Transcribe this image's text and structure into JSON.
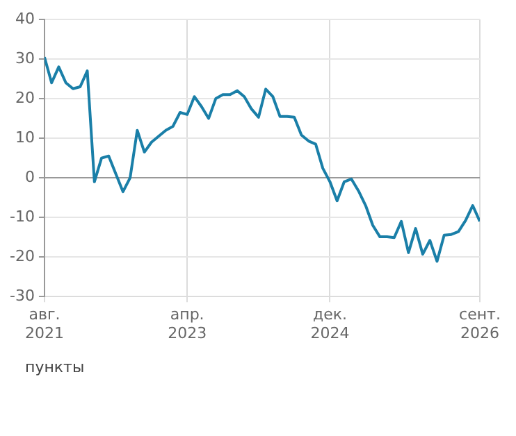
{
  "chart_data": {
    "type": "line",
    "ylabel": "пункты",
    "x": [
      "2021-08",
      "2021-09",
      "2021-10",
      "2021-11",
      "2021-12",
      "2022-01",
      "2022-02",
      "2022-03",
      "2022-04",
      "2022-05",
      "2022-06",
      "2022-07",
      "2022-08",
      "2022-09",
      "2022-10",
      "2022-11",
      "2022-12",
      "2023-01",
      "2023-02",
      "2023-03",
      "2023-04",
      "2023-05",
      "2023-06",
      "2023-07",
      "2023-08",
      "2023-09",
      "2023-10",
      "2023-11",
      "2023-12",
      "2024-01",
      "2024-02",
      "2024-03",
      "2024-04",
      "2024-05",
      "2024-06",
      "2024-07",
      "2024-08",
      "2024-09",
      "2024-10",
      "2024-11",
      "2024-12",
      "2025-01",
      "2025-02",
      "2025-03",
      "2025-04",
      "2025-05",
      "2025-06",
      "2025-07",
      "2025-08",
      "2025-09",
      "2025-10",
      "2025-11",
      "2025-12",
      "2026-01",
      "2026-02",
      "2026-03",
      "2026-04",
      "2026-05",
      "2026-06",
      "2026-07",
      "2026-08",
      "2026-09"
    ],
    "series": [
      {
        "color": "#1a7fa8",
        "values": [
          30.5,
          24,
          28,
          24,
          22.5,
          23,
          27,
          -1,
          5,
          5.5,
          1,
          -3.5,
          0,
          12,
          6.5,
          9,
          10.5,
          12,
          13,
          16.5,
          16,
          20.5,
          18,
          15,
          20,
          21,
          21,
          22,
          20.5,
          17.4,
          15.3,
          22.4,
          20.5,
          15.5,
          15.5,
          15.3,
          10.8,
          9.3,
          8.5,
          2.4,
          -1,
          -5.8,
          -1,
          -0.3,
          -3.3,
          -7,
          -12,
          -14.9,
          -14.9,
          -15.1,
          -11,
          -18.9,
          -12.8,
          -19.3,
          -15.8,
          -21.1,
          -14.5,
          -14.3,
          -13.6,
          -10.8,
          -7,
          -11
        ]
      }
    ],
    "xlim": [
      "2021-08",
      "2026-09"
    ],
    "xticks": [
      {
        "value": "2021-08",
        "label": "авг.\n2021"
      },
      {
        "value": "2023-04",
        "label": "апр.\n2023"
      },
      {
        "value": "2024-12",
        "label": "дек.\n2024"
      },
      {
        "value": "2026-09",
        "label": "сент.\n2026"
      }
    ],
    "ylim": [
      -30,
      40
    ],
    "yticks": [
      -30,
      -20,
      -10,
      0,
      10,
      20,
      30,
      40
    ],
    "grid": true,
    "marker": "none",
    "line_style": "solid",
    "legend": false
  }
}
